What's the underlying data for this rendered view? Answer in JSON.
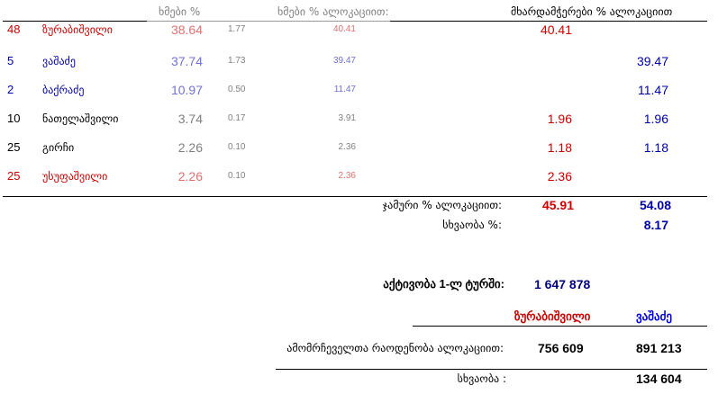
{
  "header": {
    "votes_pct": "ხმები %",
    "votes_pct_alloc": "ხმები % ალოკაციით:",
    "supporters_pct_alloc": "მხარდამჭერები % ალოკაციით"
  },
  "rows": [
    {
      "num": "48",
      "name": "ზურაბიშვილი",
      "pct": "38.64",
      "delta": "1.77",
      "alloc": "40.41",
      "red": "40.41",
      "blue": "",
      "color": "red"
    },
    {
      "num": "5",
      "name": "ვაშაძე",
      "pct": "37.74",
      "delta": "1.73",
      "alloc": "39.47",
      "red": "",
      "blue": "39.47",
      "color": "blue"
    },
    {
      "num": "2",
      "name": "ბაქრაძე",
      "pct": "10.97",
      "delta": "0.50",
      "alloc": "11.47",
      "red": "",
      "blue": "11.47",
      "color": "blue"
    },
    {
      "num": "10",
      "name": "ნათელაშვილი",
      "pct": "3.74",
      "delta": "0.17",
      "alloc": "3.91",
      "red": "1.96",
      "blue": "1.96",
      "color": "black"
    },
    {
      "num": "25",
      "name": "გირჩი",
      "pct": "2.26",
      "delta": "0.10",
      "alloc": "2.36",
      "red": "1.18",
      "blue": "1.18",
      "color": "black"
    },
    {
      "num": "25",
      "name": "უსუფაშვილი",
      "pct": "2.26",
      "delta": "0.10",
      "alloc": "2.36",
      "red": "2.36",
      "blue": "",
      "color": "red"
    }
  ],
  "totals": {
    "label": "ჯამური % ალოკაციით:",
    "red": "45.91",
    "blue": "54.08",
    "diff_label": "სხვაობა %:",
    "diff": "8.17"
  },
  "turnout": {
    "label": "აქტივობა 1-ლ ტურში:",
    "value": "1 647 878"
  },
  "voters": {
    "candidate_red": "ზურაბიშვილი",
    "candidate_blue": "ვაშაძე",
    "label": "ამომრჩეველთა რაოდენობა ალოკაციით:",
    "red": "756 609",
    "blue": "891 213",
    "diff_label": "სხვაობა :",
    "diff": "134 604"
  },
  "colors": {
    "red": "#cc0000",
    "blue": "#0000aa",
    "light_red": "#e07070",
    "light_blue": "#7070d8"
  }
}
